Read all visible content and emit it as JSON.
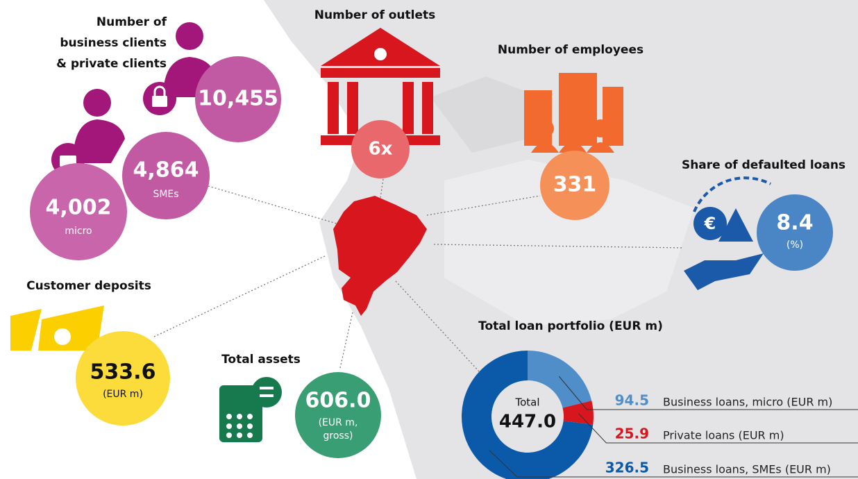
{
  "clients": {
    "title_lines": [
      "Number of",
      "business clients",
      "& private clients"
    ],
    "private": "10,455",
    "sme": {
      "value": "4,864",
      "label": "SMEs"
    },
    "micro": {
      "value": "4,002",
      "label": "micro"
    }
  },
  "outlets": {
    "title": "Number of outlets",
    "value": "6x"
  },
  "employees": {
    "title": "Number of employees",
    "value": "331"
  },
  "defaulted": {
    "title": "Share of defaulted loans",
    "value": "8.4",
    "unit": "(%)"
  },
  "deposits": {
    "title": "Customer deposits",
    "value": "533.6",
    "unit": "(EUR m)"
  },
  "assets": {
    "title": "Total assets",
    "value": "606.0",
    "unit_lines": [
      "(EUR m,",
      "gross)"
    ]
  },
  "chart_data": {
    "type": "pie",
    "title": "Total loan portfolio (EUR m)",
    "center_label": "Total",
    "center_value": "447.0",
    "categories": [
      "Business loans, micro (EUR m)",
      "Private loans (EUR m)",
      "Business loans, SMEs (EUR m)"
    ],
    "values": [
      94.5,
      25.9,
      326.5
    ],
    "colors": [
      "#4f8ec9",
      "#d7161e",
      "#0b5aa9"
    ],
    "label_colors": [
      "#4f8ec9",
      "#d7161e",
      "#0b5aa9"
    ]
  }
}
